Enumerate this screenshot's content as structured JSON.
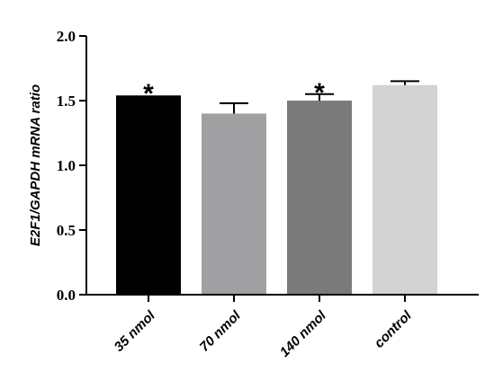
{
  "chart_data": {
    "type": "bar",
    "title": "",
    "xlabel": "",
    "ylabel": "E2F1/GAPDH mRNA ratio",
    "ylim": [
      0,
      2.0
    ],
    "yticks": [
      "0.0",
      "0.5",
      "1.0",
      "1.5",
      "2.0"
    ],
    "grid": false,
    "categories": [
      "35 nmol",
      "70 nmol",
      "140 nmol",
      "control"
    ],
    "values": [
      1.54,
      1.4,
      1.5,
      1.62
    ],
    "errors": [
      0.0,
      0.08,
      0.05,
      0.03
    ],
    "annotations": [
      "*",
      "",
      "*",
      ""
    ],
    "colors": [
      "#000000",
      "#a0a0a2",
      "#7b7b7b",
      "#d3d3d3"
    ]
  }
}
